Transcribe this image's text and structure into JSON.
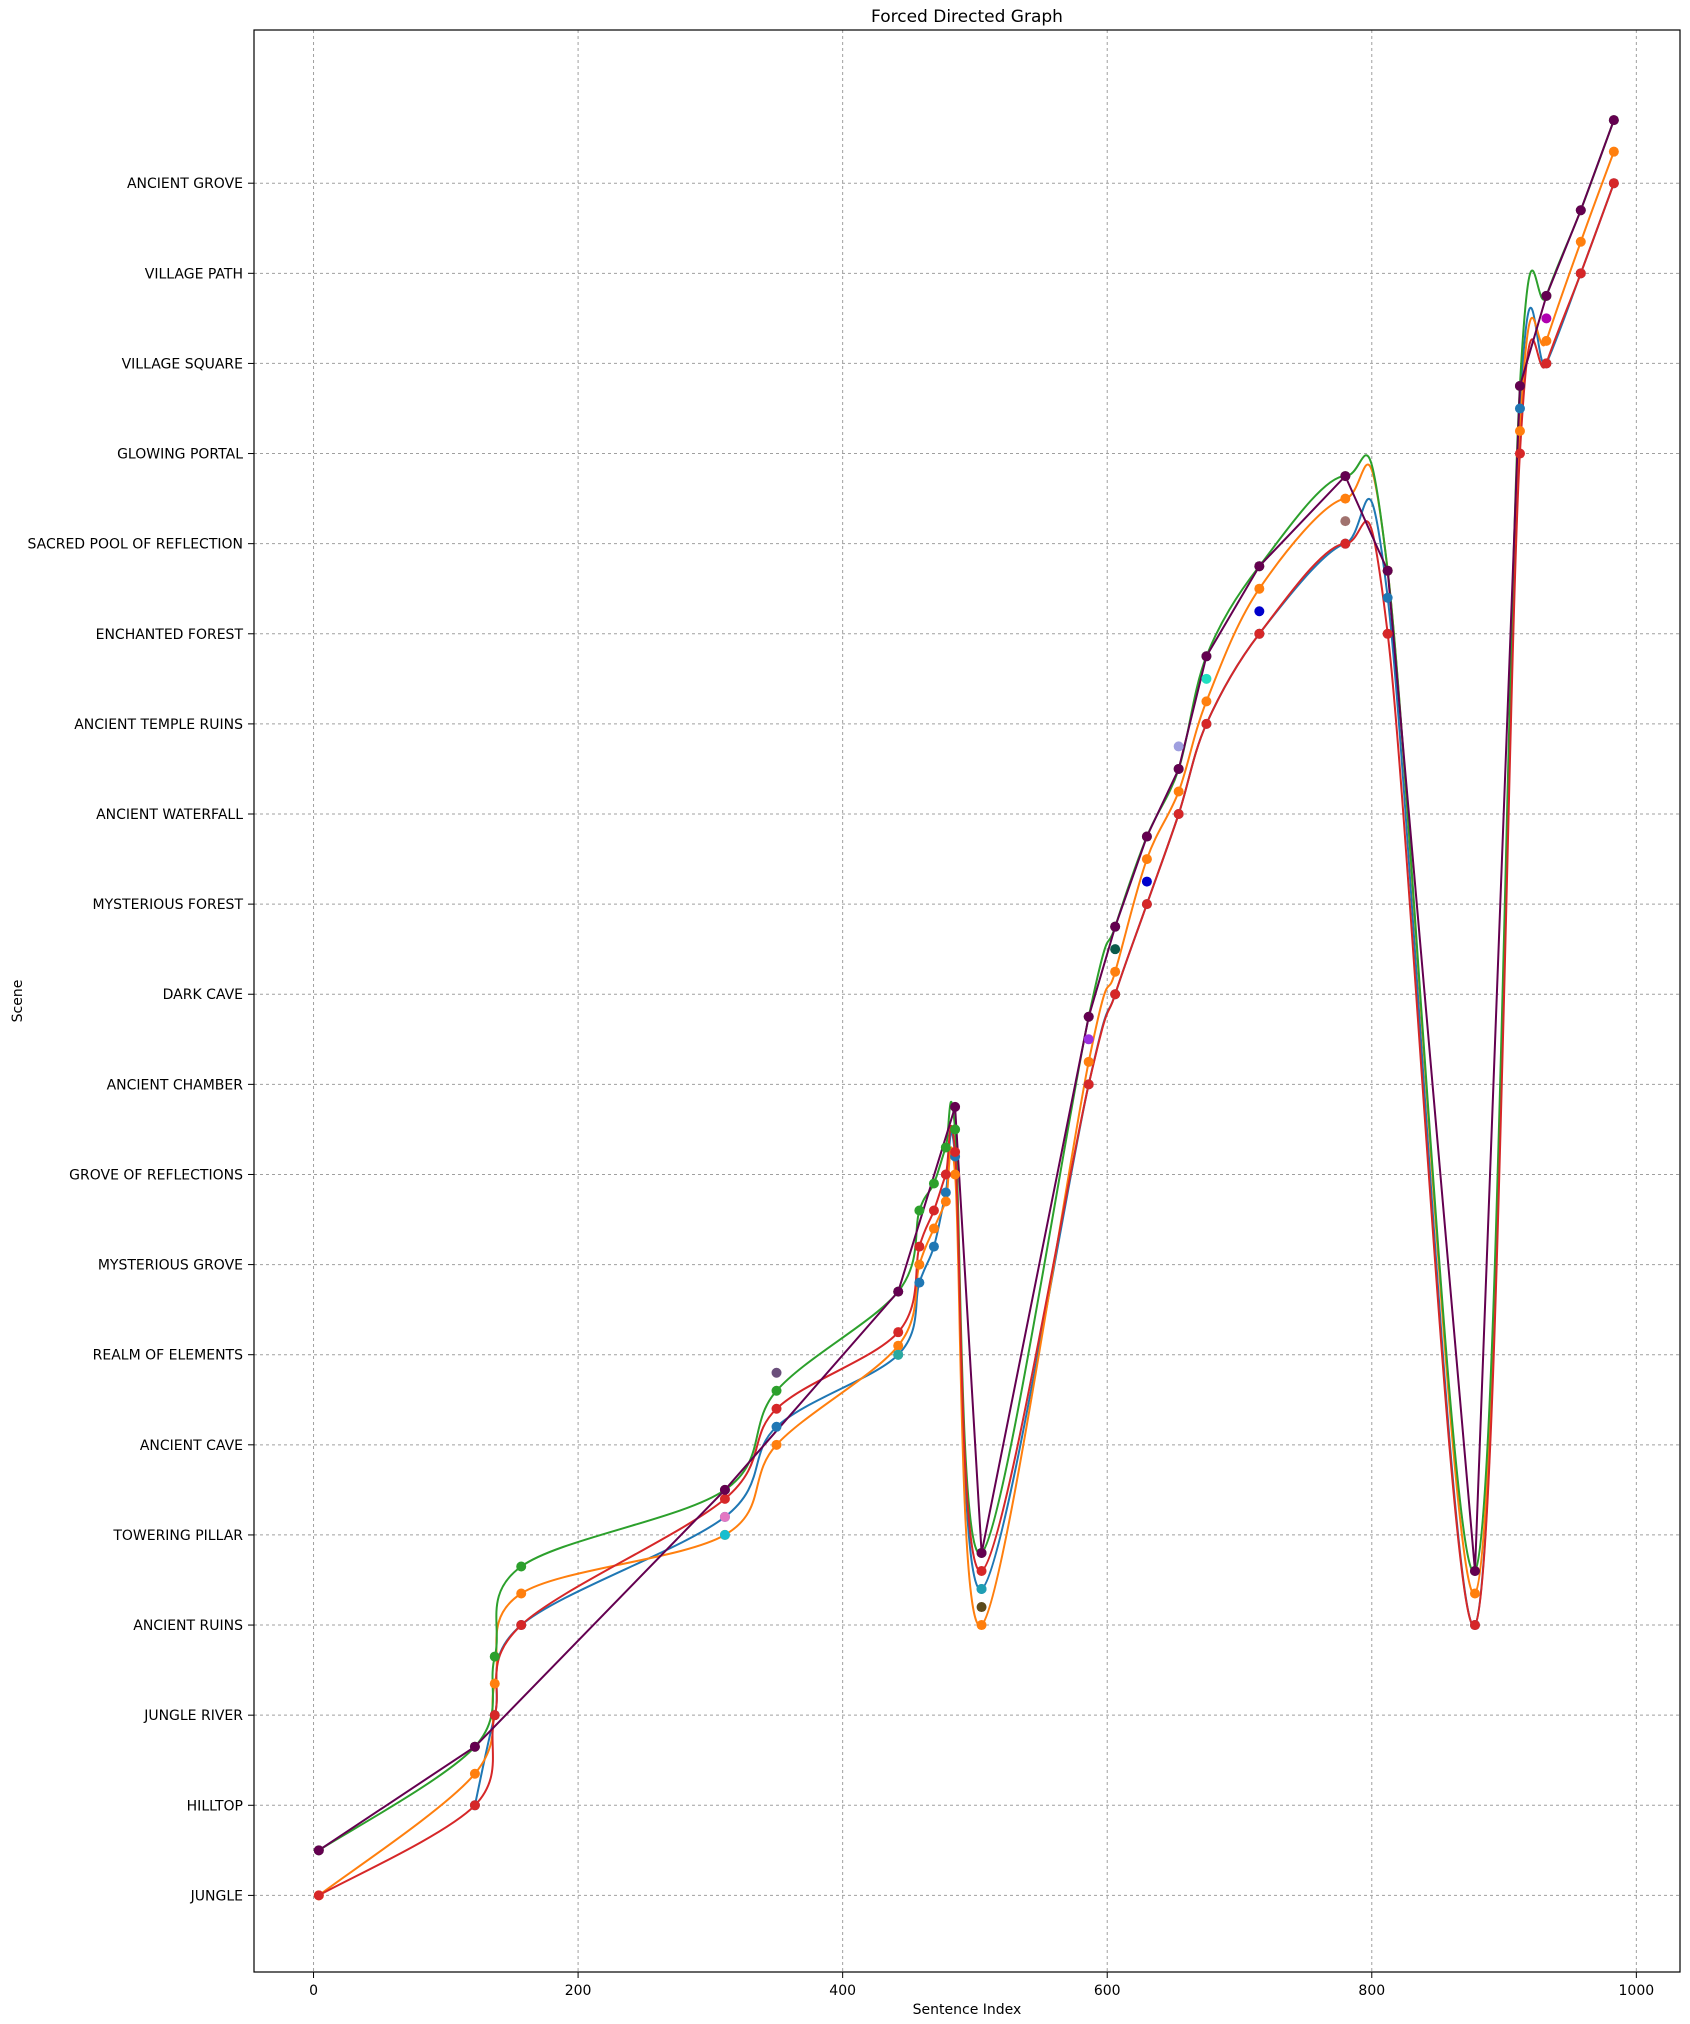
{
  "chart_data": {
    "type": "line",
    "title": "Forced Directed Graph",
    "xlabel": "Sentence Index",
    "ylabel": "Scene",
    "xlim": [
      -45,
      1033
    ],
    "ylim": [
      -0.85,
      20.7
    ],
    "xticks": [
      0,
      200,
      400,
      600,
      800,
      1000
    ],
    "categories": [
      "JUNGLE",
      "HILLTOP",
      "JUNGLE RIVER",
      "ANCIENT RUINS",
      "TOWERING PILLAR",
      "ANCIENT CAVE",
      "REALM OF ELEMENTS",
      "MYSTERIOUS GROVE",
      "GROVE OF REFLECTIONS",
      "ANCIENT CHAMBER",
      "DARK CAVE",
      "MYSTERIOUS FOREST",
      "ANCIENT WATERFALL",
      "ANCIENT TEMPLE RUINS",
      "ENCHANTED FOREST",
      "SACRED POOL OF REFLECTION",
      "GLOWING PORTAL",
      "VILLAGE SQUARE",
      "VILLAGE PATH",
      "ANCIENT GROVE"
    ],
    "grid": true,
    "series": [
      {
        "color": "#1f77b4",
        "smooth": true,
        "x": [
          122,
          137,
          157,
          311,
          350,
          442,
          458,
          469,
          478,
          485,
          505,
          586,
          606,
          630,
          654,
          675,
          715,
          780,
          812,
          878,
          912,
          932,
          958,
          983
        ],
        "y": [
          1,
          2,
          3,
          4.2,
          5.2,
          6,
          6.8,
          7.2,
          7.8,
          8.2,
          3.4,
          9,
          10,
          11,
          12,
          13,
          14,
          15,
          14.4,
          3,
          16.5,
          17,
          18,
          19
        ]
      },
      {
        "color": "#ff7f0e",
        "smooth": true,
        "x": [
          4,
          122,
          137,
          157,
          311,
          350,
          442,
          458,
          469,
          478,
          485,
          505,
          586,
          606,
          630,
          654,
          675,
          715,
          780,
          812,
          878,
          912,
          932,
          958,
          983
        ],
        "y": [
          0,
          1.35,
          2.35,
          3.35,
          4,
          5,
          6.1,
          7,
          7.4,
          7.7,
          8,
          3,
          9.25,
          10.25,
          11.5,
          12.25,
          13.25,
          14.5,
          15.5,
          14.7,
          3.35,
          16.25,
          17.25,
          18.35,
          19.35
        ]
      },
      {
        "color": "#2ca02c",
        "smooth": true,
        "x": [
          4,
          122,
          137,
          157,
          311,
          350,
          442,
          458,
          469,
          478,
          485,
          505,
          586,
          606,
          630,
          654,
          675,
          715,
          780,
          812,
          878,
          912,
          932,
          958,
          983
        ],
        "y": [
          0.5,
          1.65,
          2.65,
          3.65,
          4.5,
          5.6,
          6.7,
          7.6,
          7.9,
          8.3,
          8.5,
          3.8,
          9.75,
          10.75,
          11.75,
          12.5,
          13.75,
          14.75,
          15.75,
          14.7,
          3.6,
          16.75,
          17.75,
          18.7,
          19.7
        ]
      },
      {
        "color": "#d62728",
        "smooth": true,
        "x": [
          4,
          122,
          137,
          157,
          311,
          350,
          442,
          458,
          469,
          478,
          485,
          505,
          586,
          606,
          630,
          654,
          675,
          715,
          780,
          812,
          878,
          912,
          932,
          958,
          983
        ],
        "y": [
          0,
          1,
          2,
          3,
          4.4,
          5.4,
          6.25,
          7.2,
          7.6,
          8,
          8.25,
          3.6,
          9,
          10,
          11,
          12,
          13,
          14,
          15,
          14,
          3,
          16,
          17,
          18,
          19
        ]
      },
      {
        "color": "#640050",
        "smooth": false,
        "x": [
          4,
          122,
          311,
          442,
          485,
          505,
          586,
          606,
          630,
          654,
          675,
          715,
          780,
          812,
          878,
          912,
          932,
          958,
          983
        ],
        "y": [
          0.5,
          1.65,
          4.5,
          6.7,
          8.75,
          3.8,
          9.75,
          10.75,
          11.75,
          12.5,
          13.75,
          14.75,
          15.75,
          14.7,
          3.6,
          16.75,
          17.75,
          18.7,
          19.7
        ]
      }
    ],
    "markers": [
      {
        "x": 350,
        "y": 5.8,
        "color": "#6b4f7b"
      },
      {
        "x": 311,
        "y": 4.2,
        "color": "#e377c2"
      },
      {
        "x": 311,
        "y": 4.0,
        "color": "#17becf"
      },
      {
        "x": 442,
        "y": 6.0,
        "color": "#2ca9a0"
      },
      {
        "x": 505,
        "y": 3.4,
        "color": "#1f9fb4"
      },
      {
        "x": 505,
        "y": 3.2,
        "color": "#5b4a1b"
      },
      {
        "x": 586,
        "y": 9.5,
        "color": "#9b30e0"
      },
      {
        "x": 606,
        "y": 10.5,
        "color": "#0b5a4a"
      },
      {
        "x": 630,
        "y": 11.25,
        "color": "#0000cc"
      },
      {
        "x": 654,
        "y": 12.75,
        "color": "#9f9fdf"
      },
      {
        "x": 675,
        "y": 13.5,
        "color": "#20e0c0"
      },
      {
        "x": 715,
        "y": 14.25,
        "color": "#0000cc"
      },
      {
        "x": 780,
        "y": 15.25,
        "color": "#a0726e"
      },
      {
        "x": 932,
        "y": 17.5,
        "color": "#b000b0"
      }
    ]
  }
}
